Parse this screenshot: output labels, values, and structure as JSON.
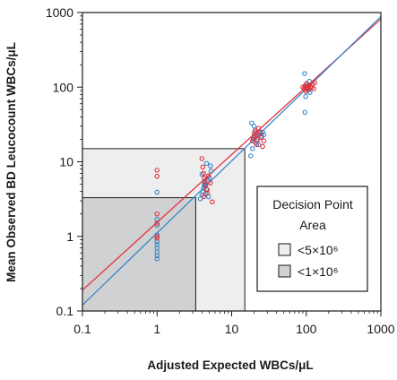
{
  "chart_data": {
    "type": "scatter",
    "xlabel": "Adjusted Expected WBCs/μL",
    "ylabel": "Mean Observed BD Leucocount WBCs/μL",
    "x_scale": "log",
    "y_scale": "log",
    "xlim": [
      0.1,
      1000
    ],
    "ylim": [
      0.1,
      1000
    ],
    "x_ticks": [
      0.1,
      1,
      10,
      100,
      1000
    ],
    "x_tick_labels": [
      "0.1",
      "1",
      "10",
      "100",
      "1000"
    ],
    "y_ticks": [
      0.1,
      1,
      10,
      100,
      1000
    ],
    "y_tick_labels": [
      "0.1",
      "1",
      "10",
      "100",
      "1000"
    ],
    "grid": false,
    "legend": {
      "title_line1": "Decision Point",
      "title_line2": "Area",
      "position": "bottom-right",
      "items": [
        {
          "label": "<5×10⁶",
          "color": "#eeeeee"
        },
        {
          "label": "<1×10⁶",
          "color": "#d0d1d3"
        }
      ]
    },
    "decision_areas": [
      {
        "x_max": 15,
        "y_max": 15,
        "color": "#eeeeee"
      },
      {
        "x_max": 3.3,
        "y_max": 3.3,
        "color": "#d0d1d3"
      }
    ],
    "series": [
      {
        "color": "#3a86c8",
        "marker": "open-circle",
        "points": [
          [
            1,
            0.5
          ],
          [
            1,
            0.55
          ],
          [
            1,
            0.62
          ],
          [
            1,
            0.7
          ],
          [
            1,
            0.78
          ],
          [
            1,
            0.85
          ],
          [
            1,
            0.95
          ],
          [
            1,
            1.05
          ],
          [
            1,
            1.4
          ],
          [
            1,
            1.7
          ],
          [
            1,
            3.9
          ],
          [
            3.8,
            3.2
          ],
          [
            4.0,
            3.6
          ],
          [
            4.1,
            4.0
          ],
          [
            4.2,
            4.4
          ],
          [
            4.3,
            4.8
          ],
          [
            4.4,
            5.2
          ],
          [
            4.0,
            6.8
          ],
          [
            4.5,
            3.7
          ],
          [
            4.7,
            4.2
          ],
          [
            4.8,
            5.6
          ],
          [
            4.6,
            9.5
          ],
          [
            5.0,
            6.0
          ],
          [
            5.2,
            8.8
          ],
          [
            5.3,
            7.5
          ],
          [
            4.9,
            3.4
          ],
          [
            4.3,
            5.0
          ],
          [
            18,
            12
          ],
          [
            18.5,
            33
          ],
          [
            19,
            15
          ],
          [
            19.5,
            20
          ],
          [
            20,
            22
          ],
          [
            21,
            25
          ],
          [
            22,
            19
          ],
          [
            23,
            17
          ],
          [
            24,
            24
          ],
          [
            25,
            22
          ],
          [
            26,
            25
          ],
          [
            27,
            23
          ],
          [
            20,
            30
          ],
          [
            21,
            18
          ],
          [
            95,
            152
          ],
          [
            96,
            46
          ],
          [
            98,
            75
          ],
          [
            100,
            88
          ],
          [
            102,
            95
          ],
          [
            104,
            105
          ],
          [
            106,
            98
          ],
          [
            108,
            92
          ],
          [
            110,
            120
          ],
          [
            100,
            110
          ],
          [
            97,
            100
          ],
          [
            112,
            85
          ]
        ]
      },
      {
        "color": "#e2323c",
        "marker": "open-circle",
        "points": [
          [
            1,
            7.7
          ],
          [
            1,
            6.4
          ],
          [
            1,
            2.0
          ],
          [
            1,
            1.5
          ],
          [
            1,
            1.0
          ],
          [
            1,
            0.95
          ],
          [
            4.0,
            11
          ],
          [
            4.1,
            8.5
          ],
          [
            4.2,
            7.0
          ],
          [
            4.3,
            6.0
          ],
          [
            4.4,
            5.4
          ],
          [
            4.5,
            4.9
          ],
          [
            4.6,
            4.3
          ],
          [
            4.7,
            3.8
          ],
          [
            4.2,
            3.4
          ],
          [
            5.5,
            2.9
          ],
          [
            5.2,
            5.2
          ],
          [
            4.9,
            6.5
          ],
          [
            19,
            19
          ],
          [
            19.5,
            21
          ],
          [
            20,
            24
          ],
          [
            20.5,
            26
          ],
          [
            21,
            22
          ],
          [
            21.5,
            17
          ],
          [
            22,
            20
          ],
          [
            22.5,
            23
          ],
          [
            23,
            28
          ],
          [
            24,
            25
          ],
          [
            25,
            21
          ],
          [
            26,
            16
          ],
          [
            27,
            19
          ],
          [
            90,
            100
          ],
          [
            94,
            96
          ],
          [
            96,
            104
          ],
          [
            99,
            88
          ],
          [
            101,
            112
          ],
          [
            103,
            93
          ],
          [
            106,
            101
          ],
          [
            108,
            97
          ],
          [
            110,
            106
          ],
          [
            114,
            102
          ],
          [
            118,
            99
          ],
          [
            122,
            110
          ],
          [
            126,
            95
          ],
          [
            130,
            115
          ]
        ]
      }
    ],
    "fit_lines": [
      {
        "color": "#e2323c",
        "x": [
          0.1,
          1000
        ],
        "y": [
          0.19,
          820
        ]
      },
      {
        "color": "#3a86c8",
        "x": [
          0.1,
          1000
        ],
        "y": [
          0.12,
          880
        ]
      }
    ]
  }
}
